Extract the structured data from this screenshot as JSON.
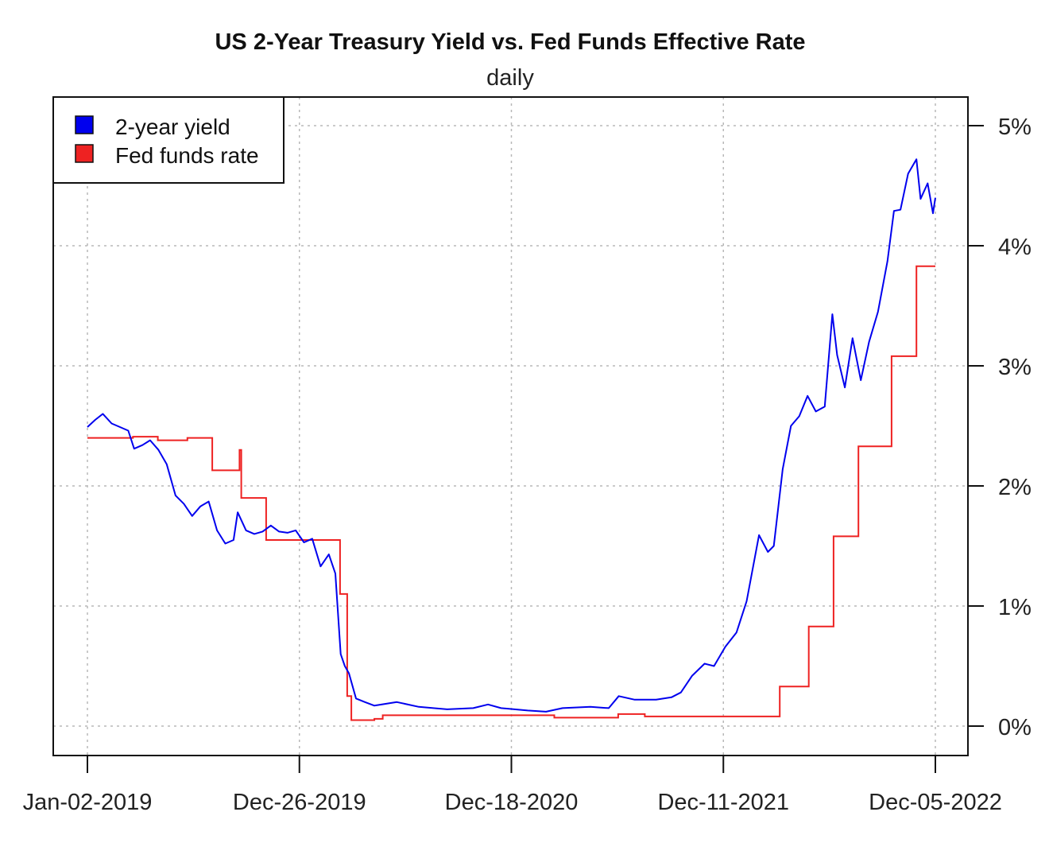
{
  "chart_data": {
    "type": "line",
    "title": "US 2-Year Treasury Yield vs. Fed Funds Effective Rate",
    "subtitle": "daily",
    "x_ticks": [
      "Jan-02-2019",
      "Dec-26-2019",
      "Dec-18-2020",
      "Dec-11-2021",
      "Dec-05-2022"
    ],
    "y_ticks": [
      "0%",
      "1%",
      "2%",
      "3%",
      "4%",
      "5%"
    ],
    "ylim": [
      -0.25,
      5.25
    ],
    "xlim": [
      "2019-01-02",
      "2022-12-05"
    ],
    "grid": true,
    "legend_position": "top-left",
    "series": [
      {
        "name": "2-year yield",
        "color": "#0000ee",
        "points": [
          [
            "2019-01-02",
            2.49
          ],
          [
            "2019-01-15",
            2.55
          ],
          [
            "2019-01-28",
            2.6
          ],
          [
            "2019-02-12",
            2.52
          ],
          [
            "2019-02-26",
            2.49
          ],
          [
            "2019-03-12",
            2.46
          ],
          [
            "2019-03-22",
            2.31
          ],
          [
            "2019-04-05",
            2.34
          ],
          [
            "2019-04-18",
            2.38
          ],
          [
            "2019-05-02",
            2.3
          ],
          [
            "2019-05-16",
            2.18
          ],
          [
            "2019-05-31",
            1.92
          ],
          [
            "2019-06-14",
            1.85
          ],
          [
            "2019-06-28",
            1.75
          ],
          [
            "2019-07-12",
            1.83
          ],
          [
            "2019-07-26",
            1.87
          ],
          [
            "2019-08-09",
            1.63
          ],
          [
            "2019-08-23",
            1.52
          ],
          [
            "2019-09-06",
            1.55
          ],
          [
            "2019-09-13",
            1.78
          ],
          [
            "2019-09-27",
            1.63
          ],
          [
            "2019-10-11",
            1.6
          ],
          [
            "2019-10-25",
            1.62
          ],
          [
            "2019-11-08",
            1.67
          ],
          [
            "2019-11-22",
            1.62
          ],
          [
            "2019-12-06",
            1.61
          ],
          [
            "2019-12-20",
            1.63
          ],
          [
            "2020-01-03",
            1.53
          ],
          [
            "2020-01-17",
            1.56
          ],
          [
            "2020-01-31",
            1.33
          ],
          [
            "2020-02-14",
            1.43
          ],
          [
            "2020-02-25",
            1.27
          ],
          [
            "2020-03-05",
            0.6
          ],
          [
            "2020-03-12",
            0.5
          ],
          [
            "2020-03-19",
            0.44
          ],
          [
            "2020-03-31",
            0.23
          ],
          [
            "2020-04-15",
            0.2
          ],
          [
            "2020-05-01",
            0.17
          ],
          [
            "2020-06-08",
            0.2
          ],
          [
            "2020-07-15",
            0.16
          ],
          [
            "2020-09-01",
            0.14
          ],
          [
            "2020-10-15",
            0.15
          ],
          [
            "2020-11-09",
            0.18
          ],
          [
            "2020-12-01",
            0.15
          ],
          [
            "2021-01-15",
            0.13
          ],
          [
            "2021-02-15",
            0.12
          ],
          [
            "2021-03-15",
            0.15
          ],
          [
            "2021-05-01",
            0.16
          ],
          [
            "2021-06-01",
            0.15
          ],
          [
            "2021-06-18",
            0.25
          ],
          [
            "2021-07-15",
            0.22
          ],
          [
            "2021-08-20",
            0.22
          ],
          [
            "2021-09-15",
            0.24
          ],
          [
            "2021-10-01",
            0.28
          ],
          [
            "2021-10-20",
            0.42
          ],
          [
            "2021-11-10",
            0.52
          ],
          [
            "2021-11-26",
            0.5
          ],
          [
            "2021-12-15",
            0.66
          ],
          [
            "2022-01-03",
            0.78
          ],
          [
            "2022-01-20",
            1.04
          ],
          [
            "2022-02-10",
            1.59
          ],
          [
            "2022-02-25",
            1.45
          ],
          [
            "2022-03-07",
            1.5
          ],
          [
            "2022-03-22",
            2.14
          ],
          [
            "2022-04-05",
            2.5
          ],
          [
            "2022-04-19",
            2.58
          ],
          [
            "2022-05-03",
            2.75
          ],
          [
            "2022-05-17",
            2.62
          ],
          [
            "2022-06-01",
            2.66
          ],
          [
            "2022-06-14",
            3.43
          ],
          [
            "2022-06-22",
            3.09
          ],
          [
            "2022-07-05",
            2.82
          ],
          [
            "2022-07-18",
            3.23
          ],
          [
            "2022-08-01",
            2.88
          ],
          [
            "2022-08-15",
            3.2
          ],
          [
            "2022-08-30",
            3.45
          ],
          [
            "2022-09-15",
            3.87
          ],
          [
            "2022-09-26",
            4.29
          ],
          [
            "2022-10-07",
            4.3
          ],
          [
            "2022-10-20",
            4.6
          ],
          [
            "2022-11-03",
            4.72
          ],
          [
            "2022-11-10",
            4.39
          ],
          [
            "2022-11-22",
            4.52
          ],
          [
            "2022-12-01",
            4.27
          ],
          [
            "2022-12-05",
            4.4
          ]
        ]
      },
      {
        "name": "Fed funds rate",
        "color": "#ee2222",
        "steps": [
          [
            "2019-01-02",
            2.4
          ],
          [
            "2019-03-20",
            2.41
          ],
          [
            "2019-05-01",
            2.38
          ],
          [
            "2019-06-20",
            2.4
          ],
          [
            "2019-08-01",
            2.13
          ],
          [
            "2019-09-16",
            2.3
          ],
          [
            "2019-09-19",
            1.9
          ],
          [
            "2019-10-31",
            1.55
          ],
          [
            "2020-01-02",
            1.55
          ],
          [
            "2020-03-04",
            1.1
          ],
          [
            "2020-03-16",
            0.25
          ],
          [
            "2020-03-23",
            0.05
          ],
          [
            "2020-05-01",
            0.06
          ],
          [
            "2020-05-15",
            0.09
          ],
          [
            "2020-09-01",
            0.09
          ],
          [
            "2020-12-01",
            0.09
          ],
          [
            "2021-03-01",
            0.07
          ],
          [
            "2021-06-17",
            0.1
          ],
          [
            "2021-08-01",
            0.08
          ],
          [
            "2022-03-17",
            0.33
          ],
          [
            "2022-05-05",
            0.83
          ],
          [
            "2022-06-16",
            1.58
          ],
          [
            "2022-07-28",
            2.33
          ],
          [
            "2022-09-22",
            3.08
          ],
          [
            "2022-11-03",
            3.83
          ],
          [
            "2022-12-05",
            3.83
          ]
        ]
      }
    ]
  }
}
